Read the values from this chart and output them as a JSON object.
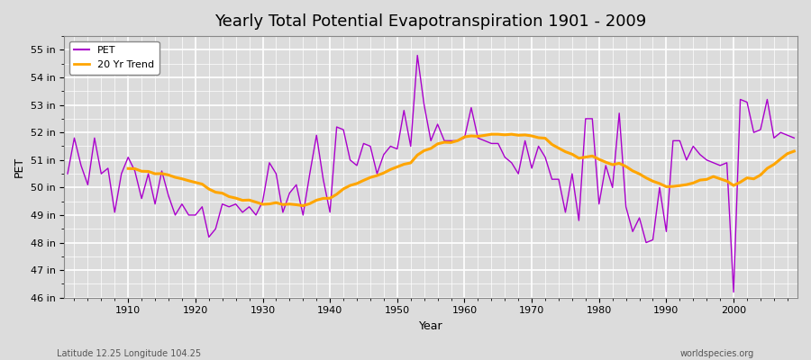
{
  "title": "Yearly Total Potential Evapotranspiration 1901 - 2009",
  "xlabel": "Year",
  "ylabel": "PET",
  "years": [
    1901,
    1902,
    1903,
    1904,
    1905,
    1906,
    1907,
    1908,
    1909,
    1910,
    1911,
    1912,
    1913,
    1914,
    1915,
    1916,
    1917,
    1918,
    1919,
    1920,
    1921,
    1922,
    1923,
    1924,
    1925,
    1926,
    1927,
    1928,
    1929,
    1930,
    1931,
    1932,
    1933,
    1934,
    1935,
    1936,
    1937,
    1938,
    1939,
    1940,
    1941,
    1942,
    1943,
    1944,
    1945,
    1946,
    1947,
    1948,
    1949,
    1950,
    1951,
    1952,
    1953,
    1954,
    1955,
    1956,
    1957,
    1958,
    1959,
    1960,
    1961,
    1962,
    1963,
    1964,
    1965,
    1966,
    1967,
    1968,
    1969,
    1970,
    1971,
    1972,
    1973,
    1974,
    1975,
    1976,
    1977,
    1978,
    1979,
    1980,
    1981,
    1982,
    1983,
    1984,
    1985,
    1986,
    1987,
    1988,
    1989,
    1990,
    1991,
    1992,
    1993,
    1994,
    1995,
    1996,
    1997,
    1998,
    1999,
    2000,
    2001,
    2002,
    2003,
    2004,
    2005,
    2006,
    2007,
    2008,
    2009
  ],
  "pet_values": [
    50.5,
    51.8,
    50.8,
    50.1,
    51.8,
    50.5,
    50.7,
    49.1,
    50.5,
    51.1,
    50.6,
    49.6,
    50.5,
    49.4,
    50.6,
    49.7,
    49.0,
    49.4,
    49.0,
    49.0,
    49.3,
    48.2,
    48.5,
    49.4,
    49.3,
    49.4,
    49.1,
    49.3,
    49.0,
    49.5,
    50.9,
    50.5,
    49.1,
    49.8,
    50.1,
    49.0,
    50.5,
    51.9,
    50.3,
    49.1,
    52.2,
    52.1,
    51.0,
    50.8,
    51.6,
    51.5,
    50.5,
    51.2,
    51.5,
    51.4,
    52.8,
    51.5,
    54.8,
    53.0,
    51.7,
    52.3,
    51.7,
    51.7,
    51.7,
    51.8,
    52.9,
    51.8,
    51.7,
    51.6,
    51.6,
    51.1,
    50.9,
    50.5,
    51.7,
    50.7,
    51.5,
    51.1,
    50.3,
    50.3,
    49.1,
    50.5,
    48.8,
    52.5,
    52.5,
    49.4,
    50.8,
    50.0,
    52.7,
    49.3,
    48.4,
    48.9,
    48.0,
    48.1,
    50.0,
    48.4,
    51.7,
    51.7,
    51.0,
    51.5,
    51.2,
    51.0,
    50.9,
    50.8,
    50.9,
    46.2,
    53.2,
    53.1,
    52.0,
    52.1,
    53.2,
    51.8,
    52.0,
    51.9,
    51.8
  ],
  "ylim": [
    46,
    55.5
  ],
  "ytick_values": [
    46,
    47,
    48,
    49,
    50,
    51,
    52,
    53,
    54,
    55
  ],
  "ytick_labels": [
    "46 in",
    "47 in",
    "48 in",
    "49 in",
    "50 in",
    "51 in",
    "52 in",
    "53 in",
    "54 in",
    "55 in"
  ],
  "xtick_values": [
    1910,
    1920,
    1930,
    1940,
    1950,
    1960,
    1970,
    1980,
    1990,
    2000
  ],
  "pet_color": "#AA00CC",
  "trend_color": "#FFA500",
  "bg_color": "#DCDCDC",
  "plot_bg_color": "#DCDCDC",
  "grid_color": "#FFFFFF",
  "trend_window": 20,
  "subtitle_left": "Latitude 12.25 Longitude 104.25",
  "subtitle_right": "worldspecies.org",
  "legend_pet": "PET",
  "legend_trend": "20 Yr Trend",
  "title_fontsize": 13,
  "label_fontsize": 9,
  "tick_fontsize": 8
}
